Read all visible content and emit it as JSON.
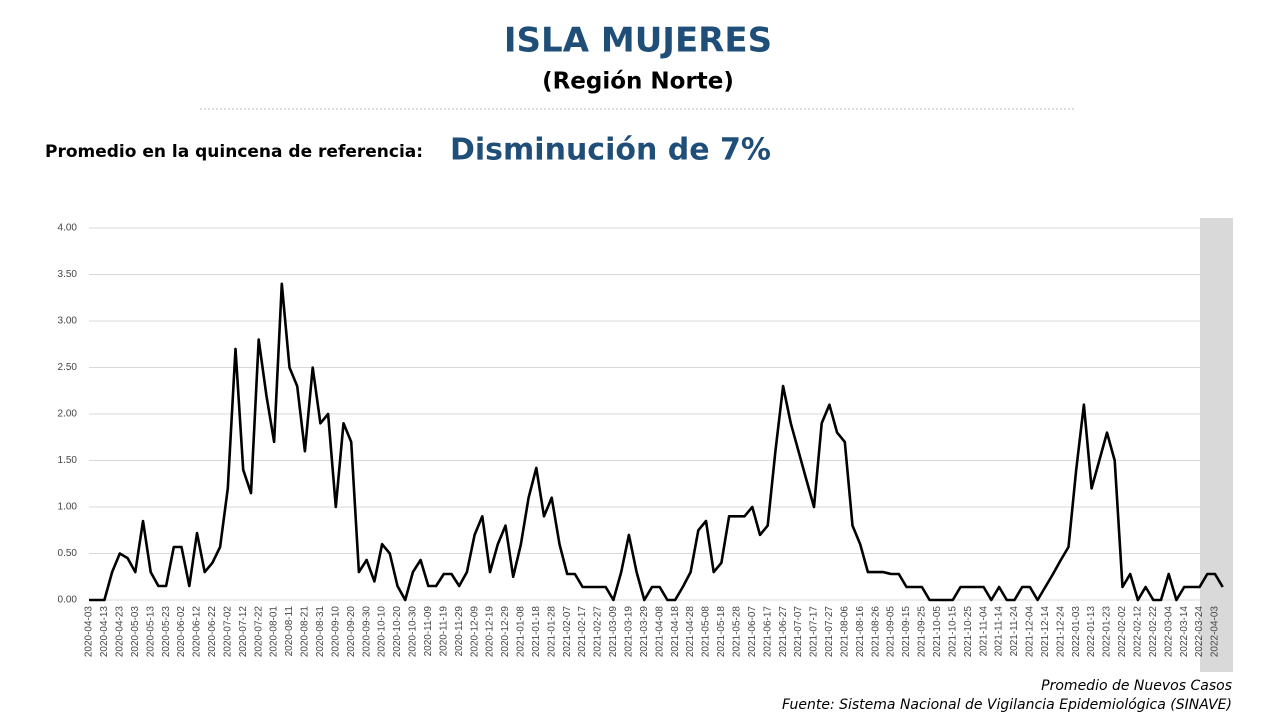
{
  "chart_data": {
    "type": "line",
    "title": "ISLA MUJERES",
    "subtitle": "(Región Norte)",
    "reference_label": "Promedio en la quincena de referencia:",
    "reference_value": "Disminución de 7%",
    "series_label": "Promedio de Nuevos Casos",
    "source": "Fuente: Sistema Nacional de Vigilancia Epidemiológica (SINAVE)",
    "categories": [
      "2020-04-03",
      null,
      "2020-04-13",
      null,
      "2020-04-23",
      null,
      "2020-05-03",
      null,
      "2020-05-13",
      null,
      "2020-05-23",
      null,
      "2020-06-02",
      null,
      "2020-06-12",
      null,
      "2020-06-22",
      null,
      "2020-07-02",
      null,
      "2020-07-12",
      null,
      "2020-07-22",
      null,
      "2020-08-01",
      null,
      "2020-08-11",
      null,
      "2020-08-21",
      null,
      "2020-08-31",
      null,
      "2020-09-10",
      null,
      "2020-09-20",
      null,
      "2020-09-30",
      null,
      "2020-10-10",
      null,
      "2020-10-20",
      null,
      "2020-10-30",
      null,
      "2020-11-09",
      null,
      "2020-11-19",
      null,
      "2020-11-29",
      null,
      "2020-12-09",
      null,
      "2020-12-19",
      null,
      "2020-12-29",
      null,
      "2021-01-08",
      null,
      "2021-01-18",
      null,
      "2021-01-28",
      null,
      "2021-02-07",
      null,
      "2021-02-17",
      null,
      "2021-02-27",
      null,
      "2021-03-09",
      null,
      "2021-03-19",
      null,
      "2021-03-29",
      null,
      "2021-04-08",
      null,
      "2021-04-18",
      null,
      "2021-04-28",
      null,
      "2021-05-08",
      null,
      "2021-05-18",
      null,
      "2021-05-28",
      null,
      "2021-06-07",
      null,
      "2021-06-17",
      null,
      "2021-06-27",
      null,
      "2021-07-07",
      null,
      "2021-07-17",
      null,
      "2021-07-27",
      null,
      "2021-08-06",
      null,
      "2021-08-16",
      null,
      "2021-08-26",
      null,
      "2021-09-05",
      null,
      "2021-09-15",
      null,
      "2021-09-25",
      null,
      "2021-10-05",
      null,
      "2021-10-15",
      null,
      "2021-10-25",
      null,
      "2021-11-04",
      null,
      "2021-11-14",
      null,
      "2021-11-24",
      null,
      "2021-12-04",
      null,
      "2021-12-14",
      null,
      "2021-12-24",
      null,
      "2022-01-03",
      null,
      "2022-01-13",
      null,
      "2022-01-23",
      null,
      "2022-02-02",
      null,
      "2022-02-12",
      null,
      "2022-02-22",
      null,
      "2022-03-04",
      null,
      "2022-03-14",
      null,
      "2022-03-24",
      null,
      "2022-04-03",
      null
    ],
    "series": [
      {
        "name": "Promedio de Nuevos Casos",
        "color": "#000000",
        "values": [
          0,
          0,
          0,
          0.3,
          0.5,
          0.45,
          0.3,
          0.85,
          0.3,
          0.15,
          0.15,
          0.57,
          0.57,
          0.15,
          0.72,
          0.3,
          0.4,
          0.57,
          1.2,
          2.7,
          1.4,
          1.15,
          2.8,
          2.2,
          1.7,
          3.4,
          2.5,
          2.3,
          1.6,
          2.5,
          1.9,
          2.0,
          1.0,
          1.9,
          1.7,
          0.3,
          0.43,
          0.2,
          0.6,
          0.5,
          0.15,
          0,
          0.3,
          0.43,
          0.15,
          0.15,
          0.28,
          0.28,
          0.15,
          0.3,
          0.7,
          0.9,
          0.3,
          0.6,
          0.8,
          0.25,
          0.6,
          1.1,
          1.42,
          0.9,
          1.1,
          0.6,
          0.28,
          0.28,
          0.14,
          0.14,
          0.14,
          0.14,
          0,
          0.3,
          0.7,
          0.3,
          0,
          0.14,
          0.14,
          0,
          0,
          0.14,
          0.3,
          0.75,
          0.85,
          0.3,
          0.4,
          0.9,
          0.9,
          0.9,
          1.0,
          0.7,
          0.8,
          1.6,
          2.3,
          1.9,
          1.6,
          1.3,
          1.0,
          1.9,
          2.1,
          1.8,
          1.7,
          0.8,
          0.6,
          0.3,
          0.3,
          0.3,
          0.28,
          0.28,
          0.14,
          0.14,
          0.14,
          0,
          0,
          0,
          0,
          0.14,
          0.14,
          0.14,
          0.14,
          0,
          0.14,
          0,
          0,
          0.14,
          0.14,
          0,
          0.14,
          0.28,
          0.43,
          0.57,
          1.4,
          2.1,
          1.2,
          1.5,
          1.8,
          1.5,
          0.14,
          0.28,
          0,
          0.14,
          0,
          0,
          0.28,
          0,
          0.14,
          0.14,
          0.14,
          0.28,
          0.28,
          0.14
        ]
      }
    ],
    "ylim": [
      0,
      4
    ],
    "yticks": [
      {
        "value": 0,
        "label": "0.00"
      },
      {
        "value": 0.5,
        "label": "0.50"
      },
      {
        "value": 1,
        "label": "1.00"
      },
      {
        "value": 1.5,
        "label": "1.50"
      },
      {
        "value": 2,
        "label": "2.00"
      },
      {
        "value": 2.5,
        "label": "2.50"
      },
      {
        "value": 3,
        "label": "3.00"
      },
      {
        "value": 3.5,
        "label": "3.50"
      },
      {
        "value": 4,
        "label": "4.00"
      }
    ],
    "grid": true
  }
}
